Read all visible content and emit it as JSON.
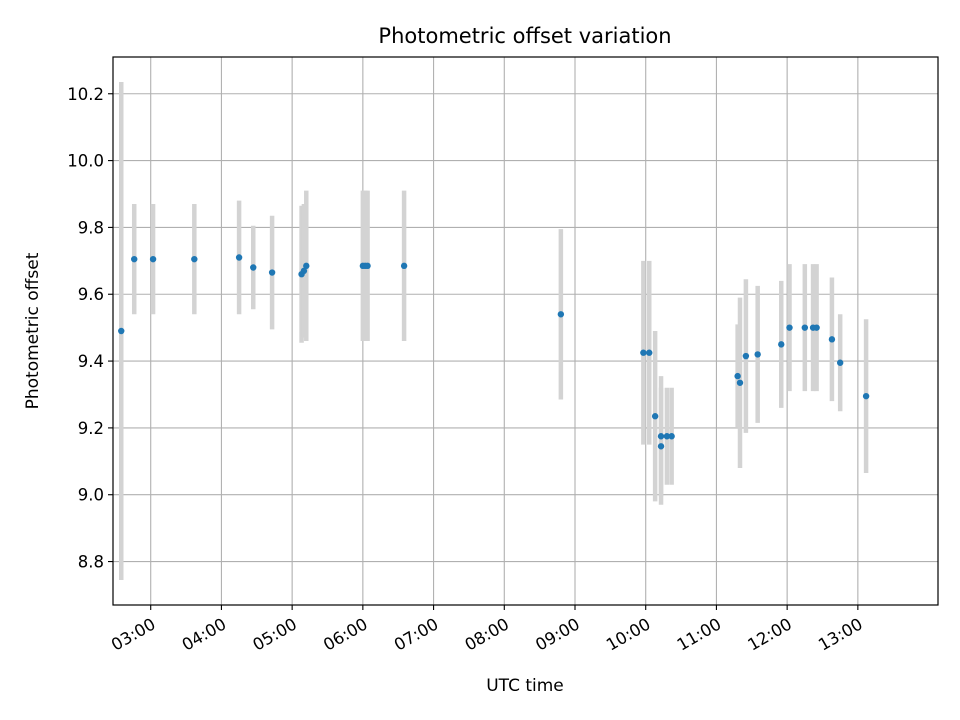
{
  "chart_data": {
    "type": "scatter",
    "title": "Photometric offset variation",
    "xlabel": "UTC time",
    "ylabel": "Photometric offset",
    "x_is_time": true,
    "xlim": [
      "02:28",
      "14:08"
    ],
    "ylim": [
      8.67,
      10.31
    ],
    "x_ticks": [
      "03:00",
      "04:00",
      "05:00",
      "06:00",
      "07:00",
      "08:00",
      "09:00",
      "10:00",
      "11:00",
      "12:00",
      "13:00"
    ],
    "y_ticks": [
      "8.8",
      "9.0",
      "9.2",
      "9.4",
      "9.6",
      "9.8",
      "10.0",
      "10.2"
    ],
    "grid": true,
    "marker_color": "#1f77b4",
    "errorbar_color": "#d3d3d3",
    "points": [
      {
        "x": "02:35",
        "y": 9.49,
        "yerr": 0.745
      },
      {
        "x": "02:46",
        "y": 9.705,
        "yerr": 0.165
      },
      {
        "x": "03:02",
        "y": 9.705,
        "yerr": 0.165
      },
      {
        "x": "03:37",
        "y": 9.705,
        "yerr": 0.165
      },
      {
        "x": "04:15",
        "y": 9.71,
        "yerr": 0.17
      },
      {
        "x": "04:27",
        "y": 9.68,
        "yerr": 0.125
      },
      {
        "x": "04:43",
        "y": 9.665,
        "yerr": 0.17
      },
      {
        "x": "05:08",
        "y": 9.66,
        "yerr": 0.205
      },
      {
        "x": "05:10",
        "y": 9.67,
        "yerr": 0.2
      },
      {
        "x": "05:12",
        "y": 9.685,
        "yerr": 0.225
      },
      {
        "x": "06:00",
        "y": 9.685,
        "yerr": 0.225
      },
      {
        "x": "06:02",
        "y": 9.685,
        "yerr": 0.225
      },
      {
        "x": "06:04",
        "y": 9.685,
        "yerr": 0.225
      },
      {
        "x": "06:35",
        "y": 9.685,
        "yerr": 0.225
      },
      {
        "x": "08:48",
        "y": 9.54,
        "yerr": 0.255
      },
      {
        "x": "09:58",
        "y": 9.425,
        "yerr": 0.275
      },
      {
        "x": "10:03",
        "y": 9.425,
        "yerr": 0.275
      },
      {
        "x": "10:08",
        "y": 9.235,
        "yerr": 0.255
      },
      {
        "x": "10:13",
        "y": 9.145,
        "yerr": 0.175
      },
      {
        "x": "10:13",
        "y": 9.175,
        "yerr": 0.18
      },
      {
        "x": "10:18",
        "y": 9.175,
        "yerr": 0.145
      },
      {
        "x": "10:22",
        "y": 9.175,
        "yerr": 0.145
      },
      {
        "x": "11:18",
        "y": 9.355,
        "yerr": 0.155
      },
      {
        "x": "11:20",
        "y": 9.335,
        "yerr": 0.255
      },
      {
        "x": "11:25",
        "y": 9.415,
        "yerr": 0.23
      },
      {
        "x": "11:35",
        "y": 9.42,
        "yerr": 0.205
      },
      {
        "x": "11:55",
        "y": 9.45,
        "yerr": 0.19
      },
      {
        "x": "12:02",
        "y": 9.5,
        "yerr": 0.19
      },
      {
        "x": "12:15",
        "y": 9.5,
        "yerr": 0.19
      },
      {
        "x": "12:22",
        "y": 9.5,
        "yerr": 0.19
      },
      {
        "x": "12:25",
        "y": 9.5,
        "yerr": 0.19
      },
      {
        "x": "12:38",
        "y": 9.465,
        "yerr": 0.185
      },
      {
        "x": "12:45",
        "y": 9.395,
        "yerr": 0.145
      },
      {
        "x": "13:07",
        "y": 9.295,
        "yerr": 0.23
      }
    ]
  }
}
